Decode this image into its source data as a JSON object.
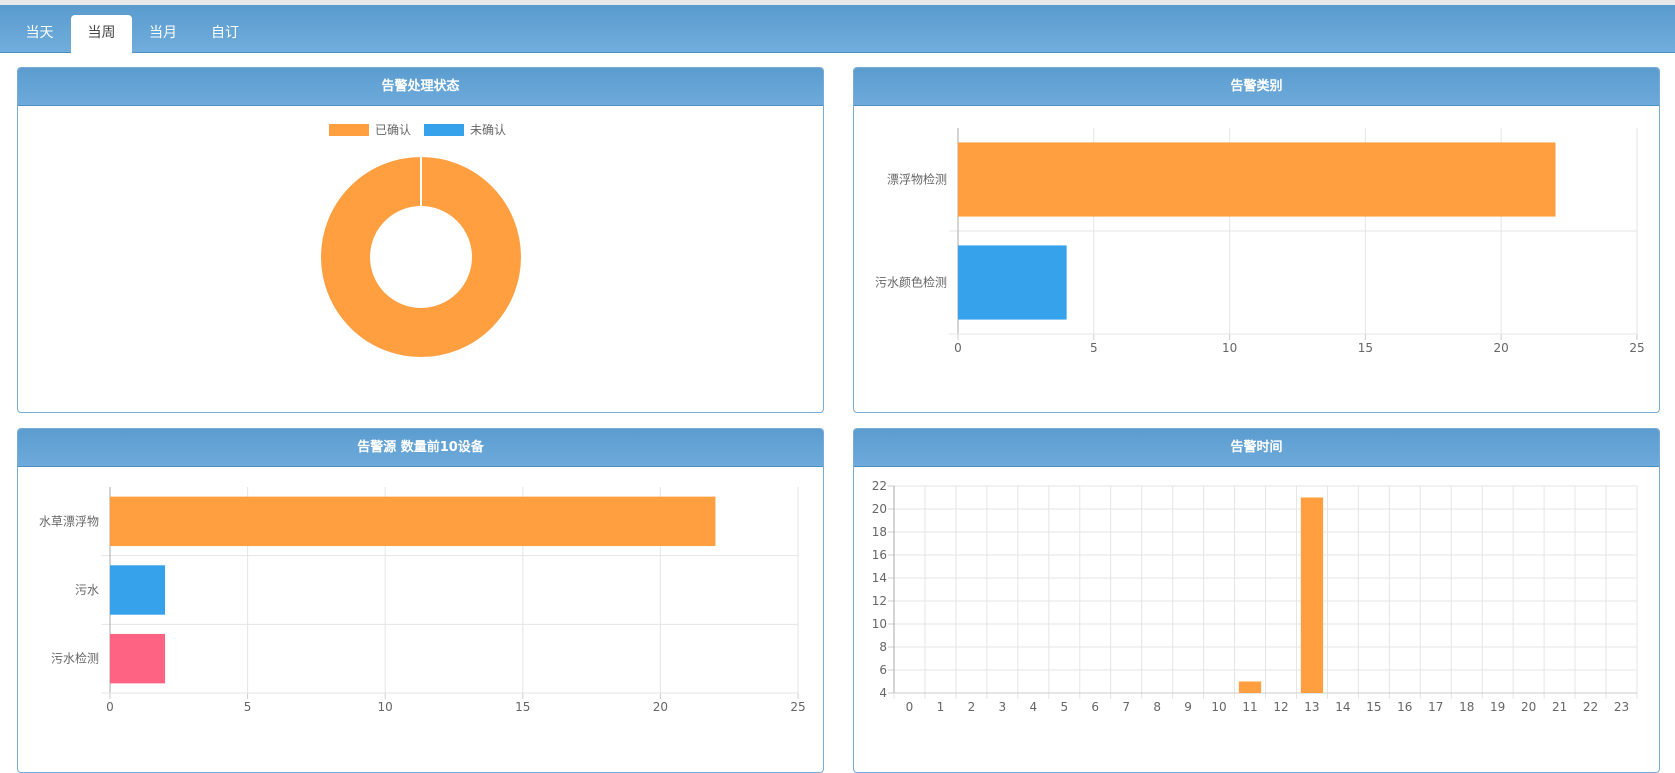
{
  "tabs": [
    {
      "label": "当天",
      "active": false
    },
    {
      "label": "当周",
      "active": true
    },
    {
      "label": "当月",
      "active": false
    },
    {
      "label": "自订",
      "active": false
    }
  ],
  "panels": {
    "status": {
      "title": "告警处理状态"
    },
    "category": {
      "title": "告警类别"
    },
    "source": {
      "title": "告警源 数量前10设备"
    },
    "time": {
      "title": "告警时间"
    }
  },
  "colors": {
    "orange": "#ff9f40",
    "blue": "#36a2eb",
    "pink": "#ff6384",
    "header": "#5b9ccf"
  },
  "chart_data": [
    {
      "id": "status",
      "type": "pie",
      "labels": [
        "已确认",
        "未确认"
      ],
      "values": [
        26,
        0
      ],
      "colors": [
        "#ff9f40",
        "#36a2eb"
      ],
      "legend": "top"
    },
    {
      "id": "category",
      "type": "bar",
      "orientation": "horizontal",
      "categories": [
        "漂浮物检测",
        "污水颜色检测"
      ],
      "values": [
        22,
        4
      ],
      "colors": [
        "#ff9f40",
        "#36a2eb"
      ],
      "xlim": [
        0,
        25
      ],
      "xticks": [
        0,
        5,
        10,
        15,
        20,
        25
      ],
      "grid": true
    },
    {
      "id": "source",
      "type": "bar",
      "orientation": "horizontal",
      "categories": [
        "水草漂浮物",
        "污水",
        "污水检测"
      ],
      "values": [
        22,
        2,
        2
      ],
      "colors": [
        "#ff9f40",
        "#36a2eb",
        "#ff6384"
      ],
      "xlim": [
        0,
        25
      ],
      "xticks": [
        0,
        5,
        10,
        15,
        20,
        25
      ],
      "grid": true
    },
    {
      "id": "time",
      "type": "bar",
      "orientation": "vertical",
      "categories": [
        "0",
        "1",
        "2",
        "3",
        "4",
        "5",
        "6",
        "7",
        "8",
        "9",
        "10",
        "11",
        "12",
        "13",
        "14",
        "15",
        "16",
        "17",
        "18",
        "19",
        "20",
        "21",
        "22",
        "23"
      ],
      "values": [
        0,
        0,
        0,
        0,
        0,
        0,
        0,
        0,
        0,
        0,
        0,
        5,
        0,
        21,
        0,
        0,
        0,
        0,
        0,
        0,
        0,
        0,
        0,
        0
      ],
      "color": "#ff9f40",
      "ylim": [
        4,
        22
      ],
      "yticks": [
        4,
        6,
        8,
        10,
        12,
        14,
        16,
        18,
        20,
        22
      ],
      "grid": true
    }
  ]
}
